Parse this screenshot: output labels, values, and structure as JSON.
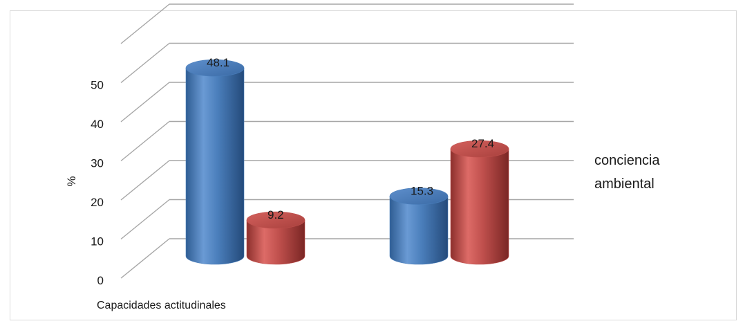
{
  "chart_data": {
    "type": "bar",
    "style": "3d-cylinder",
    "ylabel": "%",
    "yticks": [
      "0",
      "10",
      "20",
      "30",
      "40",
      "50"
    ],
    "ylim": [
      0,
      55
    ],
    "grid": true,
    "categories": [
      "Capacidades actitudinales",
      ""
    ],
    "series": [
      {
        "color": "#4a7ebb",
        "values": [
          48.1,
          15.3
        ],
        "labels": [
          "48.1",
          "15.3"
        ]
      },
      {
        "color": "#c0504d",
        "values": [
          9.2,
          27.4
        ],
        "labels": [
          "9.2",
          "27.4"
        ]
      }
    ],
    "legend": {
      "text_line1": "conciencia",
      "text_line2": "ambiental",
      "placement": "right"
    }
  }
}
